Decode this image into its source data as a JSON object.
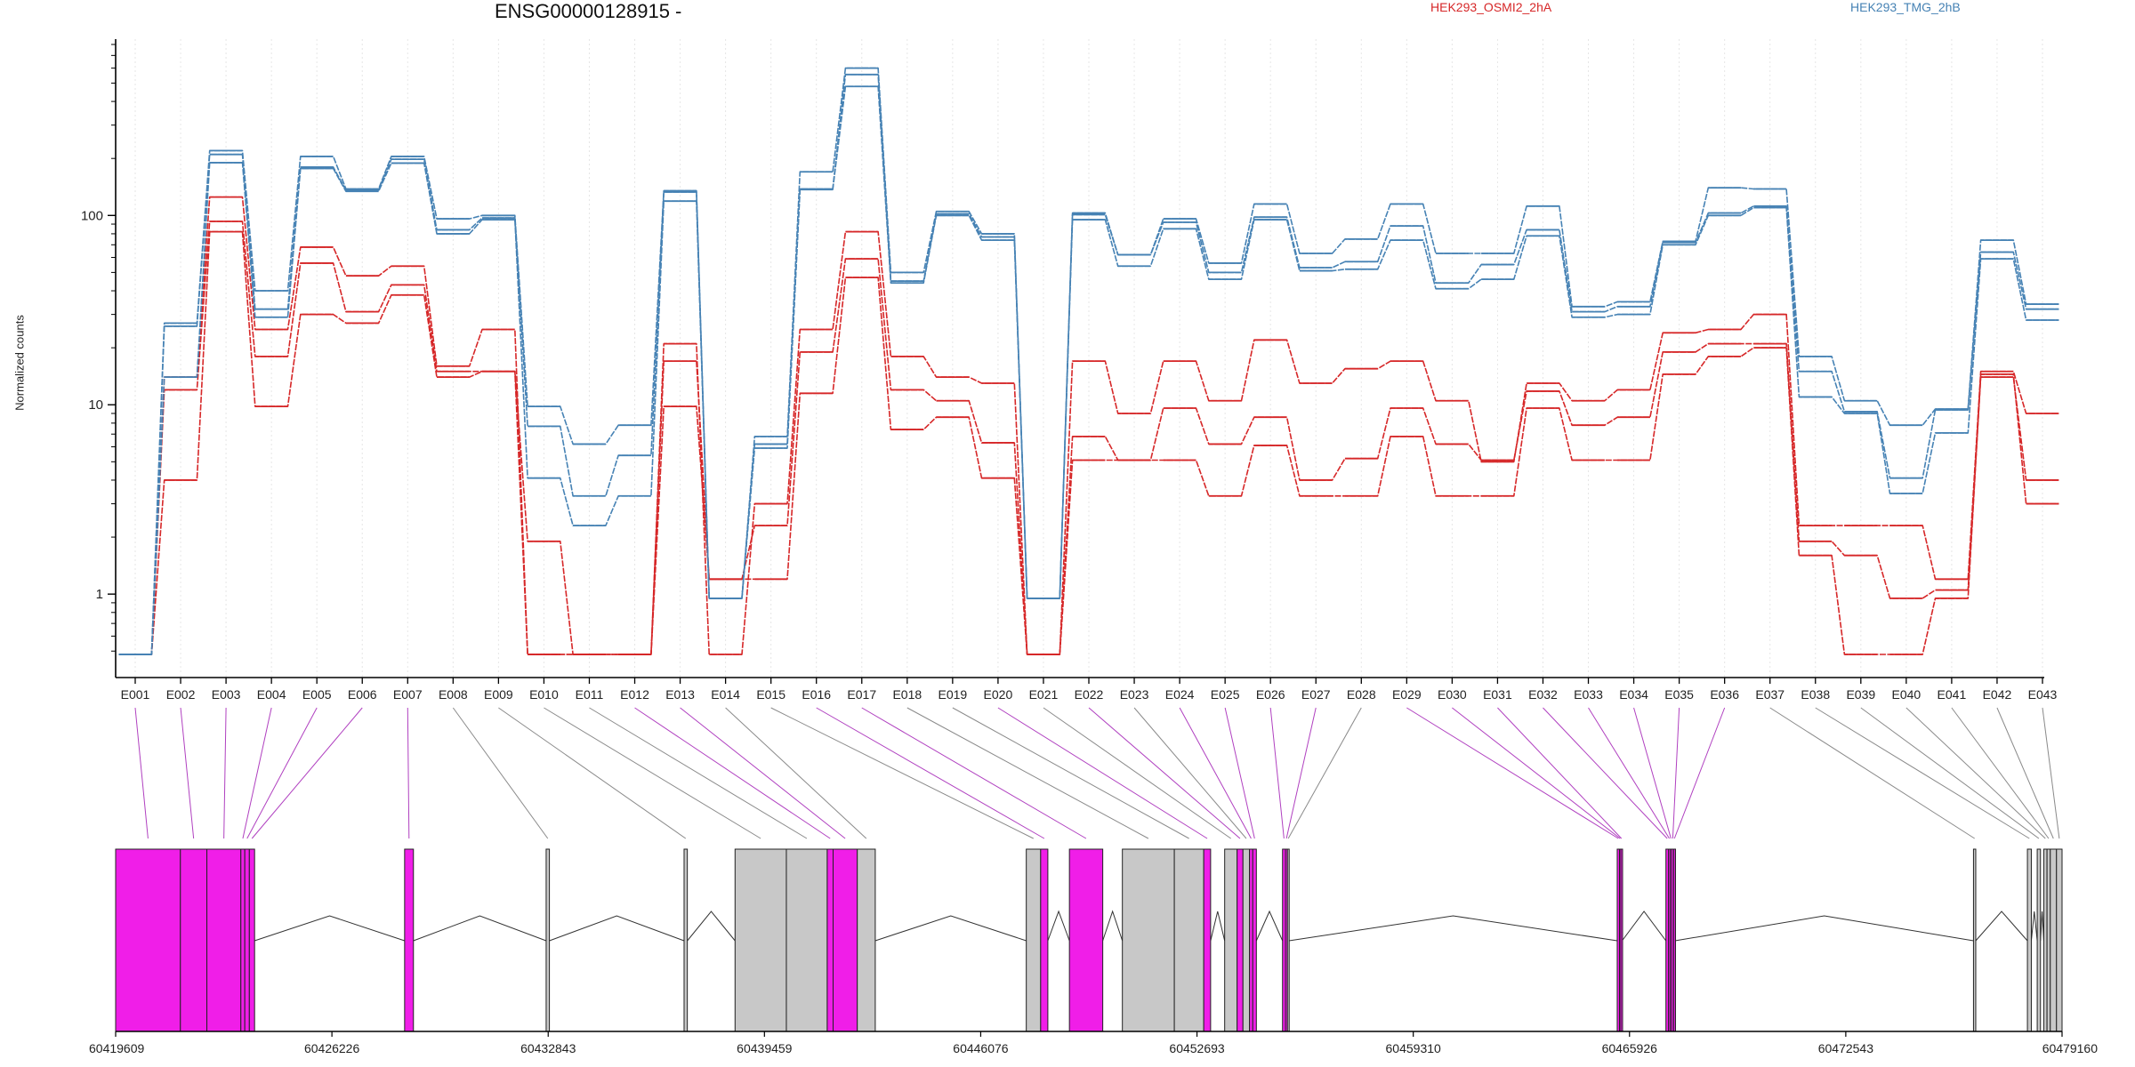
{
  "chart_data": {
    "type": "line",
    "title": "ENSG00000128915 -",
    "ylabel": "Normalized counts",
    "yscale": "log",
    "yticks": [
      1,
      10,
      100
    ],
    "ytick_labels": [
      "1",
      "10",
      "100"
    ],
    "ylim": [
      0.45,
      800
    ],
    "categories": [
      "E001",
      "E002",
      "E003",
      "E004",
      "E005",
      "E006",
      "E007",
      "E008",
      "E009",
      "E010",
      "E011",
      "E012",
      "E013",
      "E014",
      "E015",
      "E016",
      "E017",
      "E018",
      "E019",
      "E020",
      "E021",
      "E022",
      "E023",
      "E024",
      "E025",
      "E026",
      "E027",
      "E028",
      "E029",
      "E030",
      "E031",
      "E032",
      "E033",
      "E034",
      "E035",
      "E036",
      "E037",
      "E038",
      "E039",
      "E040",
      "E041",
      "E042",
      "E043"
    ],
    "series": [
      {
        "group": "HEK293_OSMI2_2hA",
        "color": "#d62728",
        "values": [
          0.48,
          14,
          125,
          25,
          68,
          48,
          54,
          16,
          25,
          0.48,
          0.48,
          0.48,
          21,
          0.48,
          3,
          25,
          82,
          18,
          14,
          13,
          0.48,
          17,
          9,
          17,
          10.5,
          22,
          13,
          15.5,
          17,
          10.5,
          5,
          13,
          10.5,
          12,
          24,
          25,
          30,
          2.3,
          2.3,
          2.3,
          1.2,
          15,
          9
        ]
      },
      {
        "group": "HEK293_OSMI2_2hA",
        "color": "#d62728",
        "values": [
          0.48,
          12,
          93,
          18,
          56,
          31,
          43,
          15,
          15,
          1.9,
          0.48,
          0.48,
          17,
          1.2,
          2.3,
          19,
          59,
          12,
          10.5,
          6.3,
          0.48,
          6.8,
          5.1,
          9.6,
          6.2,
          8.6,
          4,
          5.2,
          9.6,
          6.2,
          5.1,
          11.8,
          7.8,
          8.6,
          19,
          21,
          21,
          1.9,
          1.6,
          0.95,
          1.05,
          14,
          4
        ]
      },
      {
        "group": "HEK293_OSMI2_2hA",
        "color": "#d62728",
        "values": [
          0.48,
          4,
          82,
          9.8,
          30,
          27,
          38,
          14,
          15,
          0.48,
          0.48,
          0.48,
          9.8,
          1.2,
          1.2,
          11.5,
          47,
          7.4,
          8.6,
          4.1,
          0.48,
          5.1,
          5.1,
          5.1,
          3.3,
          6.1,
          3.3,
          3.3,
          6.8,
          3.3,
          3.3,
          9.6,
          5.1,
          5.1,
          14.5,
          18,
          20,
          1.6,
          0.48,
          0.48,
          0.95,
          14.5,
          3
        ]
      },
      {
        "group": "HEK293_TMG_2hB",
        "color": "#4682b4",
        "values": [
          0.48,
          27,
          220,
          40,
          205,
          138,
          205,
          96,
          100,
          9.8,
          6.2,
          7.8,
          135,
          0.95,
          6.8,
          170,
          600,
          50,
          105,
          80,
          0.95,
          103,
          62,
          96,
          56,
          115,
          63,
          75,
          115,
          63,
          63,
          112,
          33,
          35,
          73,
          140,
          138,
          18,
          10.5,
          7.8,
          9.5,
          74,
          34
        ]
      },
      {
        "group": "HEK293_TMG_2hB",
        "color": "#4682b4",
        "values": [
          0.48,
          26,
          210,
          32,
          180,
          136,
          198,
          84,
          97,
          7.7,
          3.3,
          5.4,
          133,
          0.95,
          6.2,
          138,
          555,
          45,
          102,
          77,
          0.95,
          101,
          62,
          92,
          50,
          98,
          53,
          57,
          88,
          44,
          55,
          84,
          31,
          33,
          72,
          103,
          112,
          15,
          9.2,
          4.1,
          9.4,
          64,
          32
        ]
      },
      {
        "group": "HEK293_TMG_2hB",
        "color": "#4682b4",
        "values": [
          0.48,
          14,
          190,
          29,
          177,
          134,
          189,
          80,
          95,
          4.1,
          2.3,
          3.3,
          119,
          0.95,
          5.9,
          137,
          480,
          44,
          100,
          74,
          0.95,
          95,
          54,
          85,
          46,
          95,
          51,
          52,
          74,
          41,
          46,
          78,
          29,
          30,
          70,
          100,
          110,
          11,
          9,
          3.4,
          7.1,
          59,
          28
        ]
      }
    ],
    "legend": [
      {
        "label": "HEK293_OSMI2_2hA",
        "color": "#d62728"
      },
      {
        "label": "HEK293_TMG_2hB",
        "color": "#4682b4"
      }
    ],
    "gene_model": {
      "coordinate_range": [
        60419609,
        60479160
      ],
      "coordinate_ticks": [
        60419609,
        60426226,
        60432843,
        60439459,
        60446076,
        60452693,
        60459310,
        60465926,
        60472543,
        60479160
      ],
      "coordinate_tick_labels": [
        "60419609",
        "60426226",
        "60432843",
        "60439459",
        "60446076",
        "60452693",
        "60459310",
        "60465926",
        "60472543",
        "60479160"
      ],
      "significant_color": "#f01ee8",
      "nonsignificant_color": "#c8c8c8",
      "exons": [
        {
          "id": "E001",
          "start": 60419609,
          "end": 60421590,
          "significant": true
        },
        {
          "id": "E002",
          "start": 60421590,
          "end": 60422400,
          "significant": true
        },
        {
          "id": "E003",
          "start": 60422400,
          "end": 60423440,
          "significant": true
        },
        {
          "id": "E004",
          "start": 60423440,
          "end": 60423560,
          "significant": true
        },
        {
          "id": "E005",
          "start": 60423560,
          "end": 60423700,
          "significant": true
        },
        {
          "id": "E006",
          "start": 60423700,
          "end": 60423860,
          "significant": true
        },
        {
          "id": "E007",
          "start": 60428450,
          "end": 60428720,
          "significant": true
        },
        {
          "id": "E008",
          "start": 60432780,
          "end": 60432880,
          "significant": false
        },
        {
          "id": "E009",
          "start": 60437000,
          "end": 60437100,
          "significant": false
        },
        {
          "id": "E010",
          "start": 60438560,
          "end": 60440130,
          "significant": false
        },
        {
          "id": "E011",
          "start": 60440130,
          "end": 60441380,
          "significant": false
        },
        {
          "id": "E012",
          "start": 60441380,
          "end": 60441560,
          "significant": true
        },
        {
          "id": "E013",
          "start": 60441560,
          "end": 60442300,
          "significant": true
        },
        {
          "id": "E014",
          "start": 60442300,
          "end": 60442850,
          "significant": false
        },
        {
          "id": "E015",
          "start": 60447470,
          "end": 60447910,
          "significant": false
        },
        {
          "id": "E016",
          "start": 60447910,
          "end": 60448130,
          "significant": true
        },
        {
          "id": "E017",
          "start": 60448790,
          "end": 60449810,
          "significant": true
        },
        {
          "id": "E018",
          "start": 60450410,
          "end": 60452000,
          "significant": false
        },
        {
          "id": "E019",
          "start": 60452000,
          "end": 60452900,
          "significant": false
        },
        {
          "id": "E020",
          "start": 60452900,
          "end": 60453110,
          "significant": true
        },
        {
          "id": "E021",
          "start": 60453540,
          "end": 60453920,
          "significant": false
        },
        {
          "id": "E022",
          "start": 60453920,
          "end": 60454100,
          "significant": true
        },
        {
          "id": "E023",
          "start": 60454100,
          "end": 60454300,
          "significant": false
        },
        {
          "id": "E024",
          "start": 60454300,
          "end": 60454400,
          "significant": true
        },
        {
          "id": "E025",
          "start": 60454400,
          "end": 60454510,
          "significant": true
        },
        {
          "id": "E026",
          "start": 60455310,
          "end": 60455400,
          "significant": true
        },
        {
          "id": "E027",
          "start": 60455400,
          "end": 60455460,
          "significant": true
        },
        {
          "id": "E028",
          "start": 60455460,
          "end": 60455510,
          "significant": false
        },
        {
          "id": "E029",
          "start": 60465550,
          "end": 60465620,
          "significant": true
        },
        {
          "id": "E030",
          "start": 60465620,
          "end": 60465660,
          "significant": true
        },
        {
          "id": "E031",
          "start": 60465660,
          "end": 60465700,
          "significant": true
        },
        {
          "id": "E032",
          "start": 60467040,
          "end": 60467120,
          "significant": true
        },
        {
          "id": "E033",
          "start": 60467120,
          "end": 60467170,
          "significant": true
        },
        {
          "id": "E034",
          "start": 60467170,
          "end": 60467220,
          "significant": true
        },
        {
          "id": "E035",
          "start": 60467220,
          "end": 60467280,
          "significant": true
        },
        {
          "id": "E036",
          "start": 60467280,
          "end": 60467320,
          "significant": true
        },
        {
          "id": "E037",
          "start": 60476450,
          "end": 60476520,
          "significant": false
        },
        {
          "id": "E038",
          "start": 60478100,
          "end": 60478220,
          "significant": false
        },
        {
          "id": "E039",
          "start": 60478400,
          "end": 60478500,
          "significant": false
        },
        {
          "id": "E040",
          "start": 60478600,
          "end": 60478700,
          "significant": false
        },
        {
          "id": "E041",
          "start": 60478700,
          "end": 60478800,
          "significant": false
        },
        {
          "id": "E042",
          "start": 60478800,
          "end": 60478990,
          "significant": false
        },
        {
          "id": "E043",
          "start": 60478990,
          "end": 60479160,
          "significant": false
        }
      ]
    }
  }
}
